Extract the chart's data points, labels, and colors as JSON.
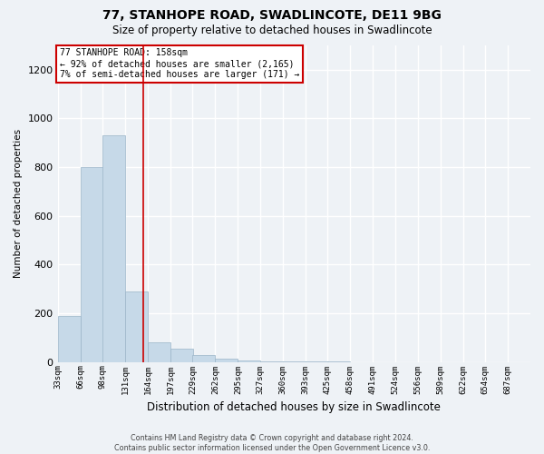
{
  "title": "77, STANHOPE ROAD, SWADLINCOTE, DE11 9BG",
  "subtitle": "Size of property relative to detached houses in Swadlincote",
  "xlabel": "Distribution of detached houses by size in Swadlincote",
  "ylabel": "Number of detached properties",
  "annotation_line1": "77 STANHOPE ROAD: 158sqm",
  "annotation_line2": "← 92% of detached houses are smaller (2,165)",
  "annotation_line3": "7% of semi-detached houses are larger (171) →",
  "footer_line1": "Contains HM Land Registry data © Crown copyright and database right 2024.",
  "footer_line2": "Contains public sector information licensed under the Open Government Licence v3.0.",
  "bar_color": "#c6d9e8",
  "bar_edge_color": "#9bb5c8",
  "vline_color": "#cc0000",
  "vline_x": 158,
  "bin_left_edges": [
    33,
    66,
    98,
    131,
    164,
    197,
    229,
    262,
    295,
    327,
    360,
    393,
    425,
    458,
    491,
    524,
    556,
    589,
    622,
    654,
    687
  ],
  "bin_heights": [
    190,
    800,
    930,
    290,
    80,
    55,
    30,
    15,
    5,
    3,
    2,
    1,
    1,
    0,
    0,
    0,
    0,
    0,
    0,
    0,
    0
  ],
  "bin_width": 33,
  "ylim": [
    0,
    1300
  ],
  "yticks": [
    0,
    200,
    400,
    600,
    800,
    1000,
    1200
  ],
  "background_color": "#eef2f6",
  "grid_color": "#ffffff",
  "annotation_box_color": "#ffffff",
  "annotation_box_edge": "#cc0000",
  "title_fontsize": 10,
  "subtitle_fontsize": 8.5
}
